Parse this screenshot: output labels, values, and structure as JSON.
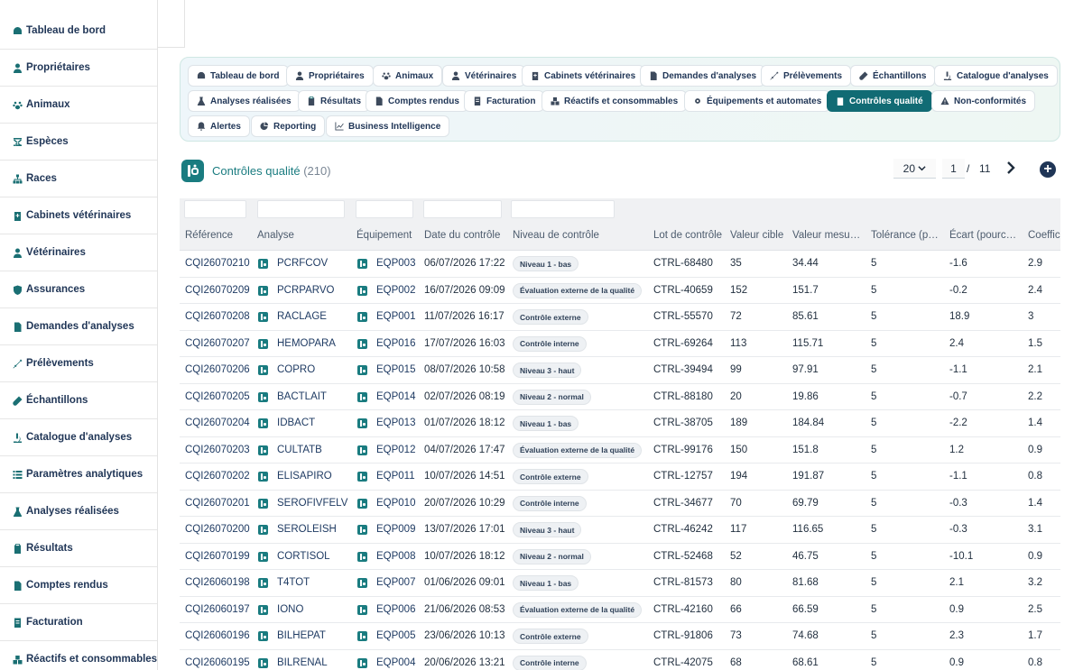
{
  "sidebar": {
    "items": [
      {
        "label": "Tableau de bord",
        "icon": "dashboard-icon"
      },
      {
        "label": "Propriétaires",
        "icon": "user-icon"
      },
      {
        "label": "Animaux",
        "icon": "paw-icon"
      },
      {
        "label": "Espèces",
        "icon": "dna-icon"
      },
      {
        "label": "Races",
        "icon": "sitemap-icon"
      },
      {
        "label": "Cabinets vétérinaires",
        "icon": "clinic-icon"
      },
      {
        "label": "Vétérinaires",
        "icon": "doctor-icon"
      },
      {
        "label": "Assurances",
        "icon": "shield-icon"
      },
      {
        "label": "Demandes d'analyses",
        "icon": "file-icon"
      },
      {
        "label": "Prélèvements",
        "icon": "syringe-icon"
      },
      {
        "label": "Échantillons",
        "icon": "tube-icon"
      },
      {
        "label": "Catalogue d'analyses",
        "icon": "microscope-icon"
      },
      {
        "label": "Paramètres analytiques",
        "icon": "list-icon"
      },
      {
        "label": "Analyses réalisées",
        "icon": "flask-icon"
      },
      {
        "label": "Résultats",
        "icon": "clipboard-icon"
      },
      {
        "label": "Comptes rendus",
        "icon": "report-icon"
      },
      {
        "label": "Facturation",
        "icon": "invoice-icon"
      },
      {
        "label": "Réactifs et consommables",
        "icon": "boxes-icon"
      }
    ]
  },
  "nav": {
    "buttons": [
      {
        "label": "Tableau de bord"
      },
      {
        "label": "Propriétaires"
      },
      {
        "label": "Animaux"
      },
      {
        "label": "Vétérinaires"
      },
      {
        "label": "Cabinets vétérinaires"
      },
      {
        "label": "Demandes d'analyses"
      },
      {
        "label": "Prélèvements"
      },
      {
        "label": "Échantillons"
      },
      {
        "label": "Catalogue d'analyses"
      },
      {
        "label": "Analyses réalisées"
      },
      {
        "label": "Résultats"
      },
      {
        "label": "Comptes rendus"
      },
      {
        "label": "Facturation"
      },
      {
        "label": "Réactifs et consommables"
      },
      {
        "label": "Équipements et automates"
      },
      {
        "label": "Contrôles qualité",
        "active": true
      },
      {
        "label": "Non-conformités"
      },
      {
        "label": "Alertes"
      },
      {
        "label": "Reporting"
      },
      {
        "label": "Business Intelligence"
      }
    ]
  },
  "page": {
    "title": "Contrôles qualité",
    "count": "(210)",
    "page_size": "20",
    "current_page": "1",
    "page_separator": "/",
    "total_pages": "11",
    "add_label": "+"
  },
  "table": {
    "columns": [
      "Référence",
      "Analyse",
      "Équipement",
      "Date du contrôle",
      "Niveau de contrôle",
      "Lot de contrôle",
      "Valeur cible",
      "Valeur mesu…",
      "Tolérance (p…",
      "Écart (pourc…",
      "Coeffici"
    ],
    "rows": [
      [
        "CQI26070210",
        "PCRFCOV",
        "EQP003",
        "06/07/2026 17:22",
        "Niveau 1 - bas",
        "CTRL-68480",
        "35",
        "34.44",
        "5",
        "-1.6",
        "2.9"
      ],
      [
        "CQI26070209",
        "PCRPARVO",
        "EQP002",
        "16/07/2026 09:09",
        "Évaluation externe de la qualité",
        "CTRL-40659",
        "152",
        "151.7",
        "5",
        "-0.2",
        "2.4"
      ],
      [
        "CQI26070208",
        "RACLAGE",
        "EQP001",
        "11/07/2026 16:17",
        "Contrôle externe",
        "CTRL-55570",
        "72",
        "85.61",
        "5",
        "18.9",
        "3"
      ],
      [
        "CQI26070207",
        "HEMOPARA",
        "EQP016",
        "17/07/2026 16:03",
        "Contrôle interne",
        "CTRL-69264",
        "113",
        "115.71",
        "5",
        "2.4",
        "1.5"
      ],
      [
        "CQI26070206",
        "COPRO",
        "EQP015",
        "08/07/2026 10:58",
        "Niveau 3 - haut",
        "CTRL-39494",
        "99",
        "97.91",
        "5",
        "-1.1",
        "2.1"
      ],
      [
        "CQI26070205",
        "BACTLAIT",
        "EQP014",
        "02/07/2026 08:19",
        "Niveau 2 - normal",
        "CTRL-88180",
        "20",
        "19.86",
        "5",
        "-0.7",
        "2.2"
      ],
      [
        "CQI26070204",
        "IDBACT",
        "EQP013",
        "01/07/2026 18:12",
        "Niveau 1 - bas",
        "CTRL-38705",
        "189",
        "184.84",
        "5",
        "-2.2",
        "1.4"
      ],
      [
        "CQI26070203",
        "CULTATB",
        "EQP012",
        "04/07/2026 17:47",
        "Évaluation externe de la qualité",
        "CTRL-99176",
        "150",
        "151.8",
        "5",
        "1.2",
        "0.9"
      ],
      [
        "CQI26070202",
        "ELISAPIRO",
        "EQP011",
        "10/07/2026 14:51",
        "Contrôle externe",
        "CTRL-12757",
        "194",
        "191.87",
        "5",
        "-1.1",
        "0.8"
      ],
      [
        "CQI26070201",
        "SEROFIVFELV",
        "EQP010",
        "20/07/2026 10:29",
        "Contrôle interne",
        "CTRL-34677",
        "70",
        "69.79",
        "5",
        "-0.3",
        "1.4"
      ],
      [
        "CQI26070200",
        "SEROLEISH",
        "EQP009",
        "13/07/2026 17:01",
        "Niveau 3 - haut",
        "CTRL-46242",
        "117",
        "116.65",
        "5",
        "-0.3",
        "3.1"
      ],
      [
        "CQI26070199",
        "CORTISOL",
        "EQP008",
        "10/07/2026 18:12",
        "Niveau 2 - normal",
        "CTRL-52468",
        "52",
        "46.75",
        "5",
        "-10.1",
        "0.9"
      ],
      [
        "CQI26060198",
        "T4TOT",
        "EQP007",
        "01/06/2026 09:01",
        "Niveau 1 - bas",
        "CTRL-81573",
        "80",
        "81.68",
        "5",
        "2.1",
        "3.2"
      ],
      [
        "CQI26060197",
        "IONO",
        "EQP006",
        "21/06/2026 08:53",
        "Évaluation externe de la qualité",
        "CTRL-42160",
        "66",
        "66.59",
        "5",
        "0.9",
        "2.5"
      ],
      [
        "CQI26060196",
        "BILHEPAT",
        "EQP005",
        "23/06/2026 10:13",
        "Contrôle externe",
        "CTRL-91806",
        "73",
        "74.68",
        "5",
        "2.3",
        "1.7"
      ],
      [
        "CQI26060195",
        "BILRENAL",
        "EQP004",
        "20/06/2026 13:21",
        "Contrôle interne",
        "CTRL-42075",
        "68",
        "68.61",
        "5",
        "0.9",
        "0.8"
      ]
    ]
  },
  "colors": {
    "accent": "#1a7c80",
    "active_nav": "#116b74",
    "navy": "#1f3556"
  }
}
